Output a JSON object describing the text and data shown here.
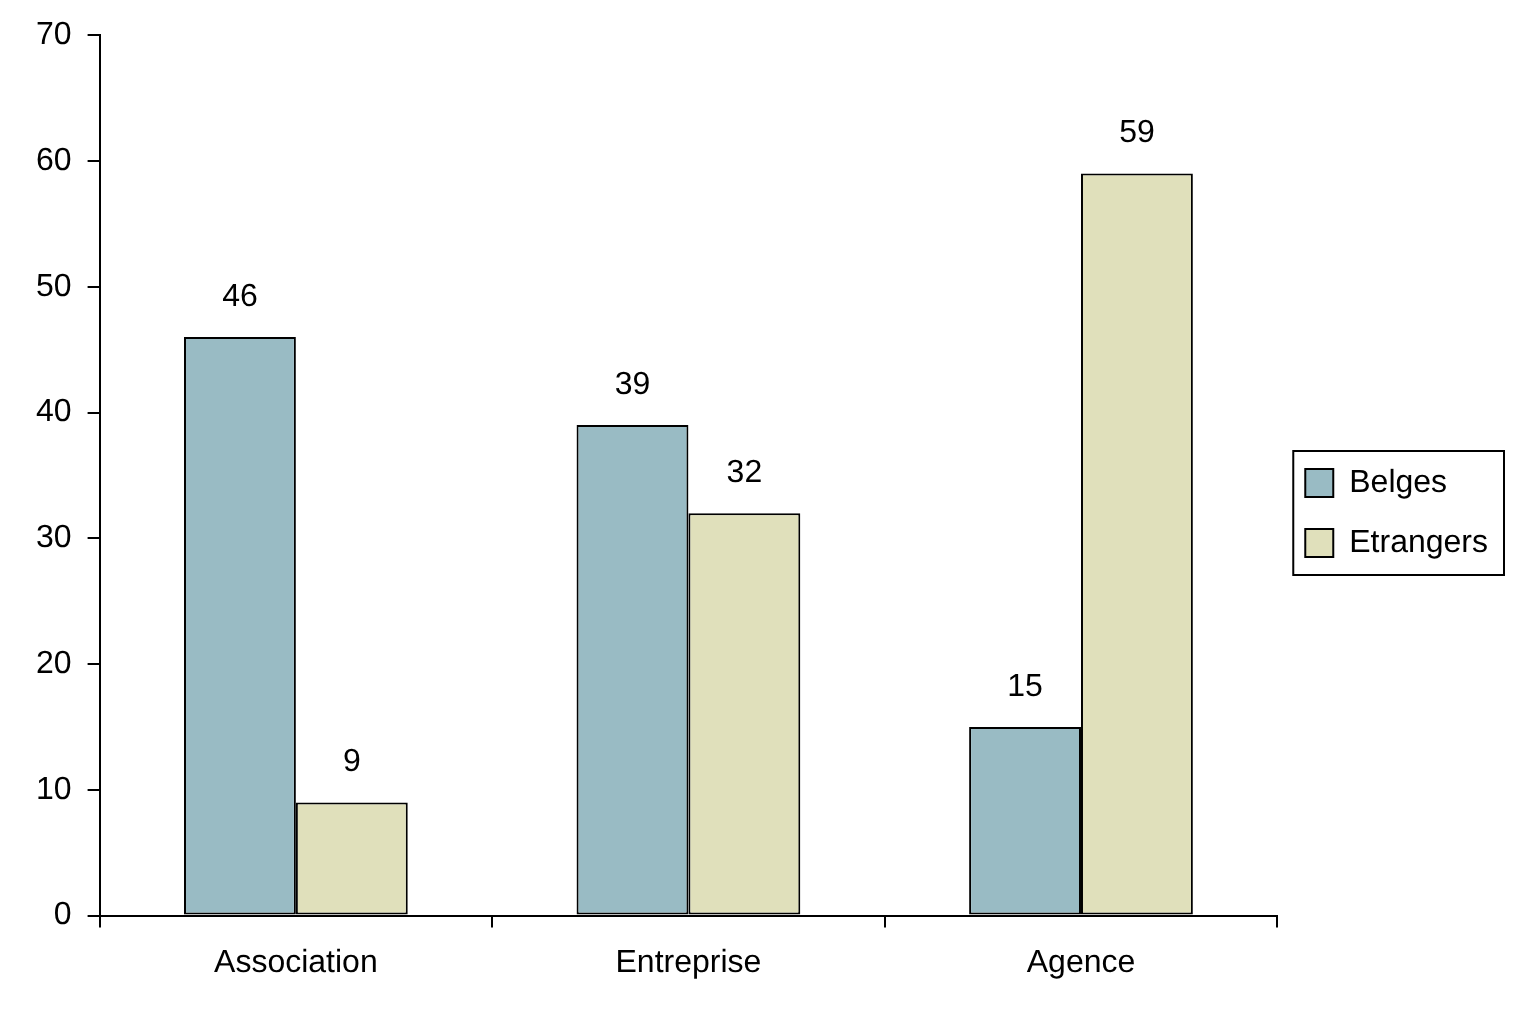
{
  "chart_data": {
    "type": "bar",
    "categories": [
      "Association",
      "Entreprise",
      "Agence"
    ],
    "series": [
      {
        "name": "Belges",
        "color": "#99bbc4",
        "values": [
          46,
          39,
          15
        ]
      },
      {
        "name": "Etrangers",
        "color": "#e0e0bb",
        "values": [
          9,
          32,
          59
        ]
      }
    ],
    "ylim": [
      0,
      70
    ],
    "yticks": [
      0,
      10,
      20,
      30,
      40,
      50,
      60,
      70
    ],
    "legend": "right",
    "data_labels": true
  }
}
